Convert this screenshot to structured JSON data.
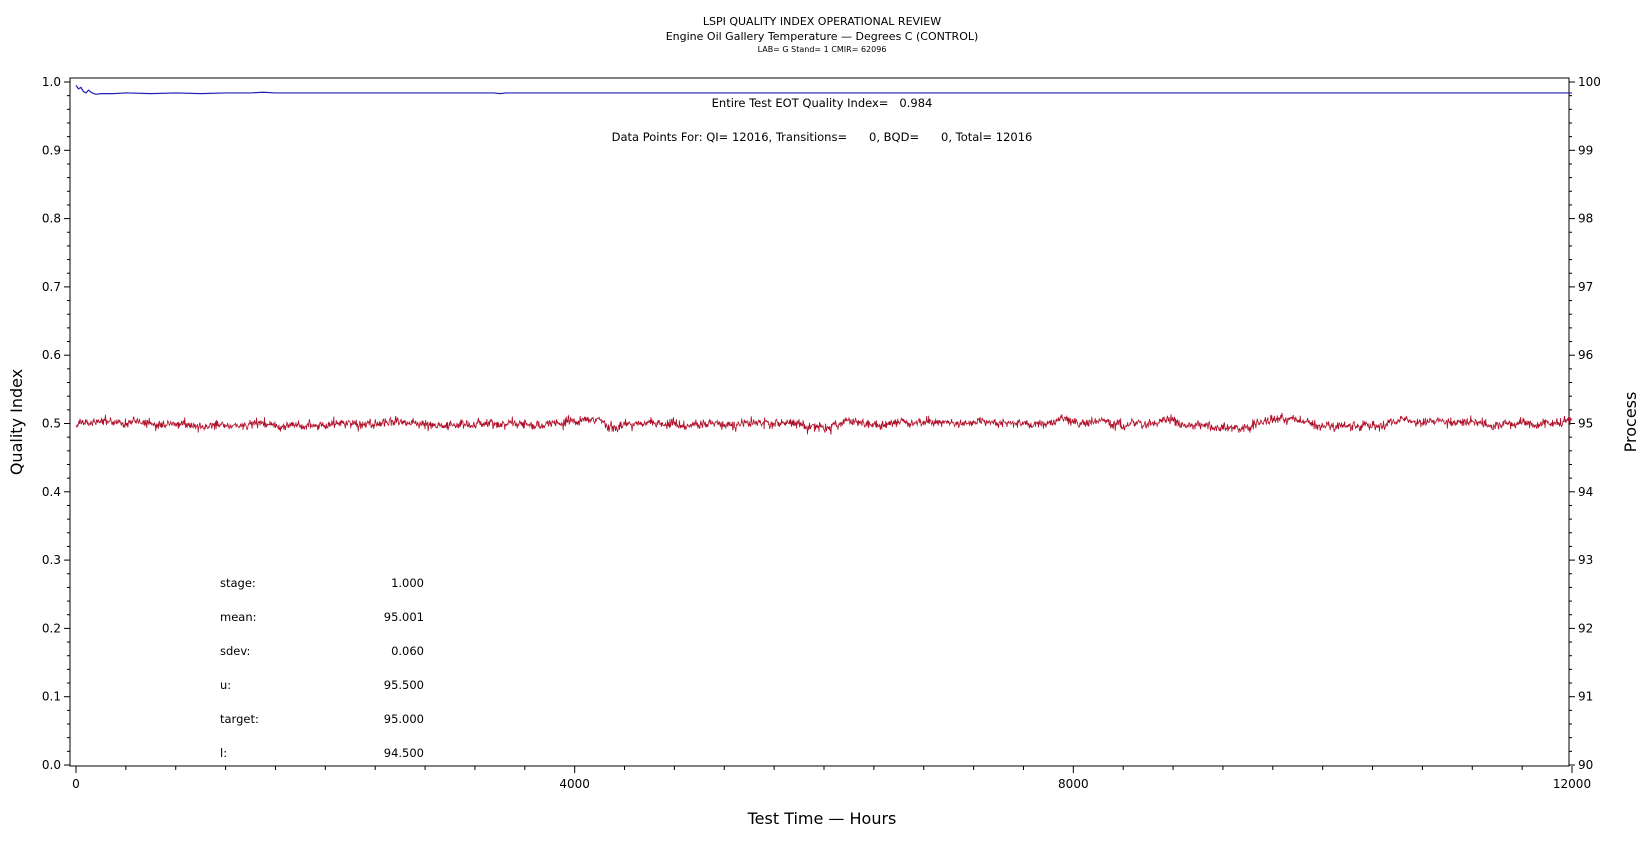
{
  "chart_data": {
    "type": "line",
    "title": "LSPI QUALITY INDEX OPERATIONAL REVIEW",
    "subtitle": "Engine Oil Gallery Temperature — Degrees C (CONTROL)",
    "subtitle2": "LAB= G Stand= 1 CMIR= 62096",
    "xlabel": "Test Time — Hours",
    "ylabel": "Quality Index",
    "y2label": "Process",
    "xlim": [
      0,
      12000
    ],
    "ylim": [
      0.0,
      1.0
    ],
    "y2lim": [
      90,
      100
    ],
    "x_tick_labels": [
      "0",
      "4000",
      "8000",
      "12000"
    ],
    "y_tick_labels": [
      "0.0",
      "0.1",
      "0.2",
      "0.3",
      "0.4",
      "0.5",
      "0.6",
      "0.7",
      "0.8",
      "0.9",
      "1.0"
    ],
    "y2_tick_labels": [
      "90",
      "91",
      "92",
      "93",
      "94",
      "95",
      "96",
      "97",
      "98",
      "99",
      "100"
    ],
    "annotations": {
      "qi_text": "Entire Test EOT Quality Index=   0.984",
      "points_text": "Data Points For: QI= 12016, Transitions=      0, BQD=      0, Total= 12016"
    },
    "stats": [
      {
        "label": "stage:",
        "value": "1.000"
      },
      {
        "label": "mean:",
        "value": "95.001"
      },
      {
        "label": "sdev:",
        "value": "0.060"
      },
      {
        "label": "u:",
        "value": "95.500"
      },
      {
        "label": "target:",
        "value": "95.000"
      },
      {
        "label": "l:",
        "value": "94.500"
      }
    ],
    "series": [
      {
        "axis": "left",
        "color": "#1f1fb4",
        "points": [
          [
            0,
            0.995
          ],
          [
            20,
            0.99
          ],
          [
            40,
            0.992
          ],
          [
            60,
            0.986
          ],
          [
            80,
            0.984
          ],
          [
            100,
            0.988
          ],
          [
            130,
            0.984
          ],
          [
            160,
            0.982
          ],
          [
            200,
            0.983
          ],
          [
            300,
            0.983
          ],
          [
            400,
            0.984
          ],
          [
            600,
            0.983
          ],
          [
            800,
            0.984
          ],
          [
            1000,
            0.983
          ],
          [
            1200,
            0.984
          ],
          [
            1400,
            0.984
          ],
          [
            1500,
            0.985
          ],
          [
            1600,
            0.984
          ],
          [
            2000,
            0.984
          ],
          [
            3000,
            0.984
          ],
          [
            3350,
            0.984
          ],
          [
            3400,
            0.983
          ],
          [
            3450,
            0.984
          ],
          [
            4000,
            0.984
          ],
          [
            6000,
            0.984
          ],
          [
            8000,
            0.984
          ],
          [
            10000,
            0.984
          ],
          [
            12000,
            0.984
          ]
        ]
      },
      {
        "axis": "right",
        "color": "#b0102a",
        "mean": 95.001,
        "sdev": 0.06,
        "n_points": 12016
      }
    ]
  }
}
